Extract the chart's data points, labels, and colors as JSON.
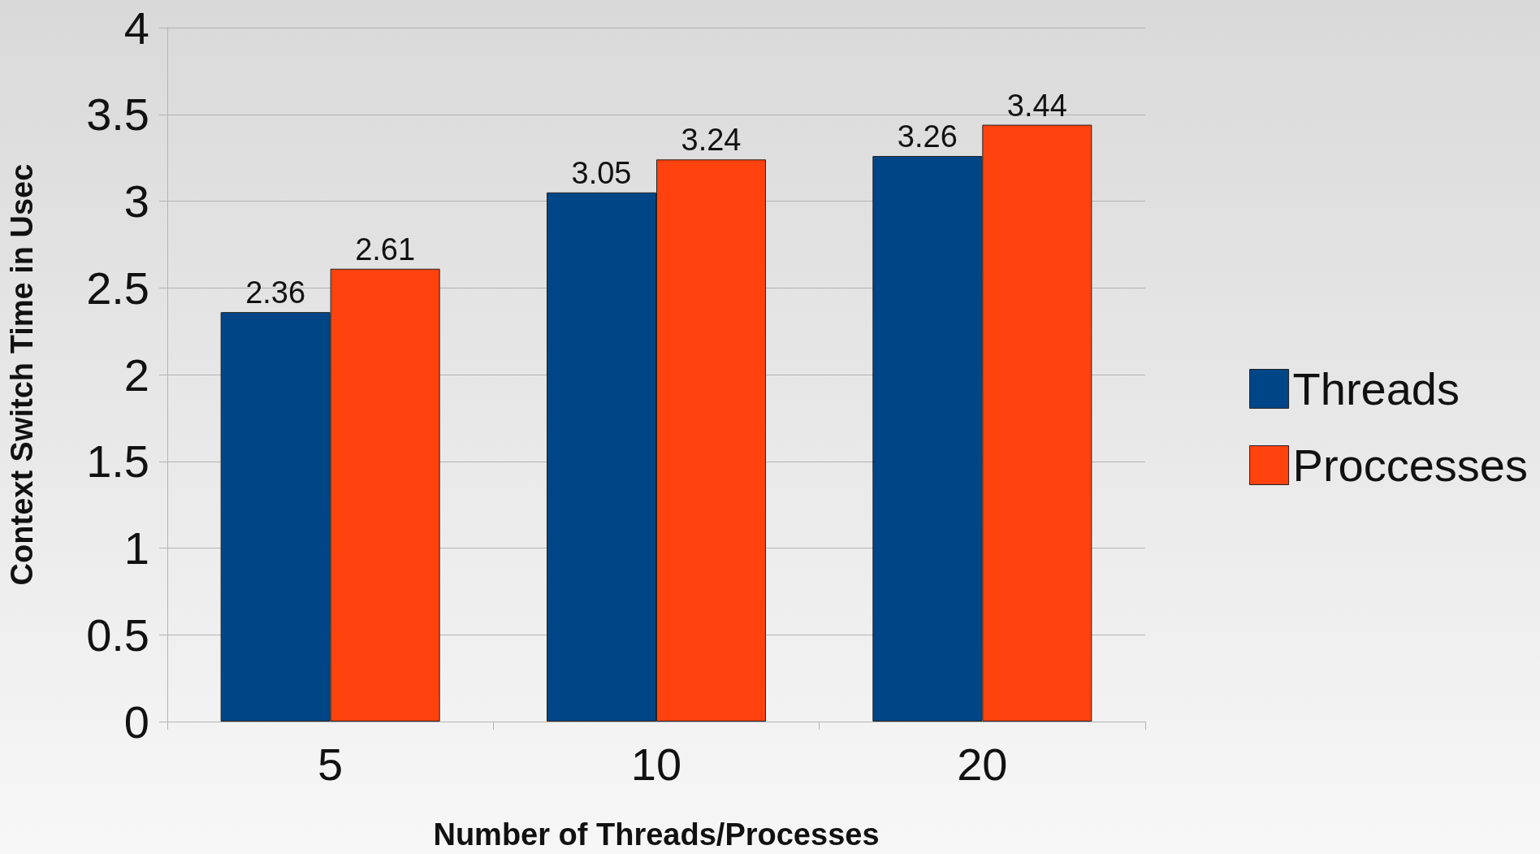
{
  "chart_data": {
    "type": "bar",
    "xlabel": "Number of Threads/Processes",
    "ylabel": "Context Switch Time in Usec",
    "categories": [
      "5",
      "10",
      "20"
    ],
    "series": [
      {
        "name": "Threads",
        "color": "#004586",
        "values": [
          2.36,
          3.05,
          3.26
        ]
      },
      {
        "name": "Proccesses",
        "color": "#ff420e",
        "values": [
          2.61,
          3.24,
          3.44
        ]
      }
    ],
    "ylim": [
      0,
      4
    ],
    "yticks": [
      0,
      0.5,
      1,
      1.5,
      2,
      2.5,
      3,
      3.5,
      4
    ],
    "grid": "y",
    "legend": "right",
    "data_labels": true
  }
}
